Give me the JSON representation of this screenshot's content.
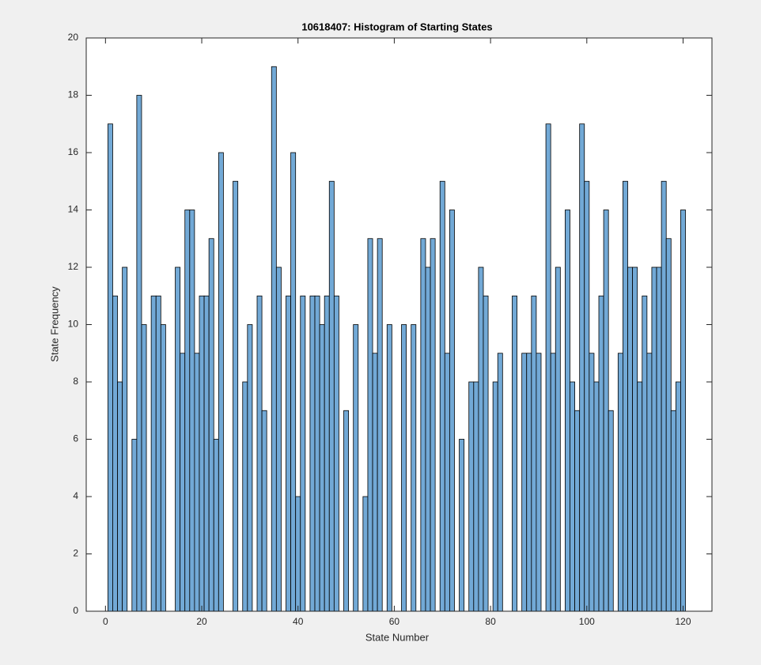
{
  "chart_data": {
    "type": "histogram",
    "title": "10618407: Histogram of Starting States",
    "xlabel": "State Number",
    "ylabel": "State Frequency",
    "bins": [
      0.5,
      1.5,
      2.5,
      3.5,
      4.5,
      5.5,
      6.5,
      7.5,
      8.5,
      9.5,
      10.5,
      11.5,
      12.5,
      13.5,
      14.5,
      15.5,
      16.5,
      17.5,
      18.5,
      19.5,
      20.5,
      21.5,
      22.5,
      23.5,
      24.5,
      25.5,
      26.5,
      27.5,
      28.5,
      29.5,
      30.5,
      31.5,
      32.5,
      33.5,
      34.5,
      35.5,
      36.5,
      37.5,
      38.5,
      39.5,
      40.5,
      41.5,
      42.5,
      43.5,
      44.5,
      45.5,
      46.5,
      47.5,
      48.5,
      49.5,
      50.5,
      51.5,
      52.5,
      53.5,
      54.5,
      55.5,
      56.5,
      57.5,
      58.5,
      59.5,
      60.5,
      61.5,
      62.5,
      63.5,
      64.5,
      65.5,
      66.5,
      67.5,
      68.5,
      69.5,
      70.5,
      71.5,
      72.5,
      73.5,
      74.5,
      75.5,
      76.5,
      77.5,
      78.5,
      79.5,
      80.5,
      81.5,
      82.5,
      83.5,
      84.5,
      85.5,
      86.5,
      87.5,
      88.5,
      89.5,
      90.5,
      91.5,
      92.5,
      93.5,
      94.5,
      95.5,
      96.5,
      97.5,
      98.5,
      99.5,
      100.5,
      101.5,
      102.5,
      103.5,
      104.5,
      105.5,
      106.5,
      107.5,
      108.5,
      109.5,
      110.5,
      111.5,
      112.5,
      113.5,
      114.5,
      115.5,
      116.5,
      117.5,
      118.5,
      119.5,
      120.5
    ],
    "counts": [
      17,
      11,
      8,
      12,
      0,
      6,
      18,
      10,
      0,
      11,
      11,
      10,
      0,
      0,
      12,
      9,
      14,
      14,
      9,
      11,
      11,
      13,
      6,
      16,
      0,
      0,
      15,
      0,
      8,
      10,
      0,
      11,
      7,
      0,
      19,
      12,
      0,
      11,
      16,
      4,
      11,
      0,
      11,
      11,
      10,
      11,
      15,
      11,
      0,
      7,
      0,
      10,
      0,
      4,
      13,
      9,
      13,
      0,
      10,
      0,
      0,
      10,
      0,
      10,
      0,
      13,
      12,
      13,
      0,
      15,
      9,
      14,
      0,
      6,
      0,
      8,
      8,
      12,
      11,
      0,
      8,
      9,
      0,
      0,
      11,
      0,
      9,
      9,
      11,
      9,
      0,
      17,
      9,
      12,
      0,
      14,
      8,
      7,
      17,
      15,
      9,
      8,
      11,
      14,
      7,
      0,
      9,
      15,
      12,
      12,
      8,
      11,
      9,
      12,
      12,
      15,
      13,
      7,
      8,
      14
    ],
    "color": "#72a9d6",
    "edgecolor": "#000000",
    "xlim": [
      -4,
      126
    ],
    "xticks": [
      0,
      20,
      40,
      60,
      80,
      100,
      120
    ],
    "ylim": [
      0,
      20
    ],
    "yticks": [
      0,
      2,
      4,
      6,
      8,
      10,
      12,
      14,
      16,
      18,
      20
    ]
  }
}
